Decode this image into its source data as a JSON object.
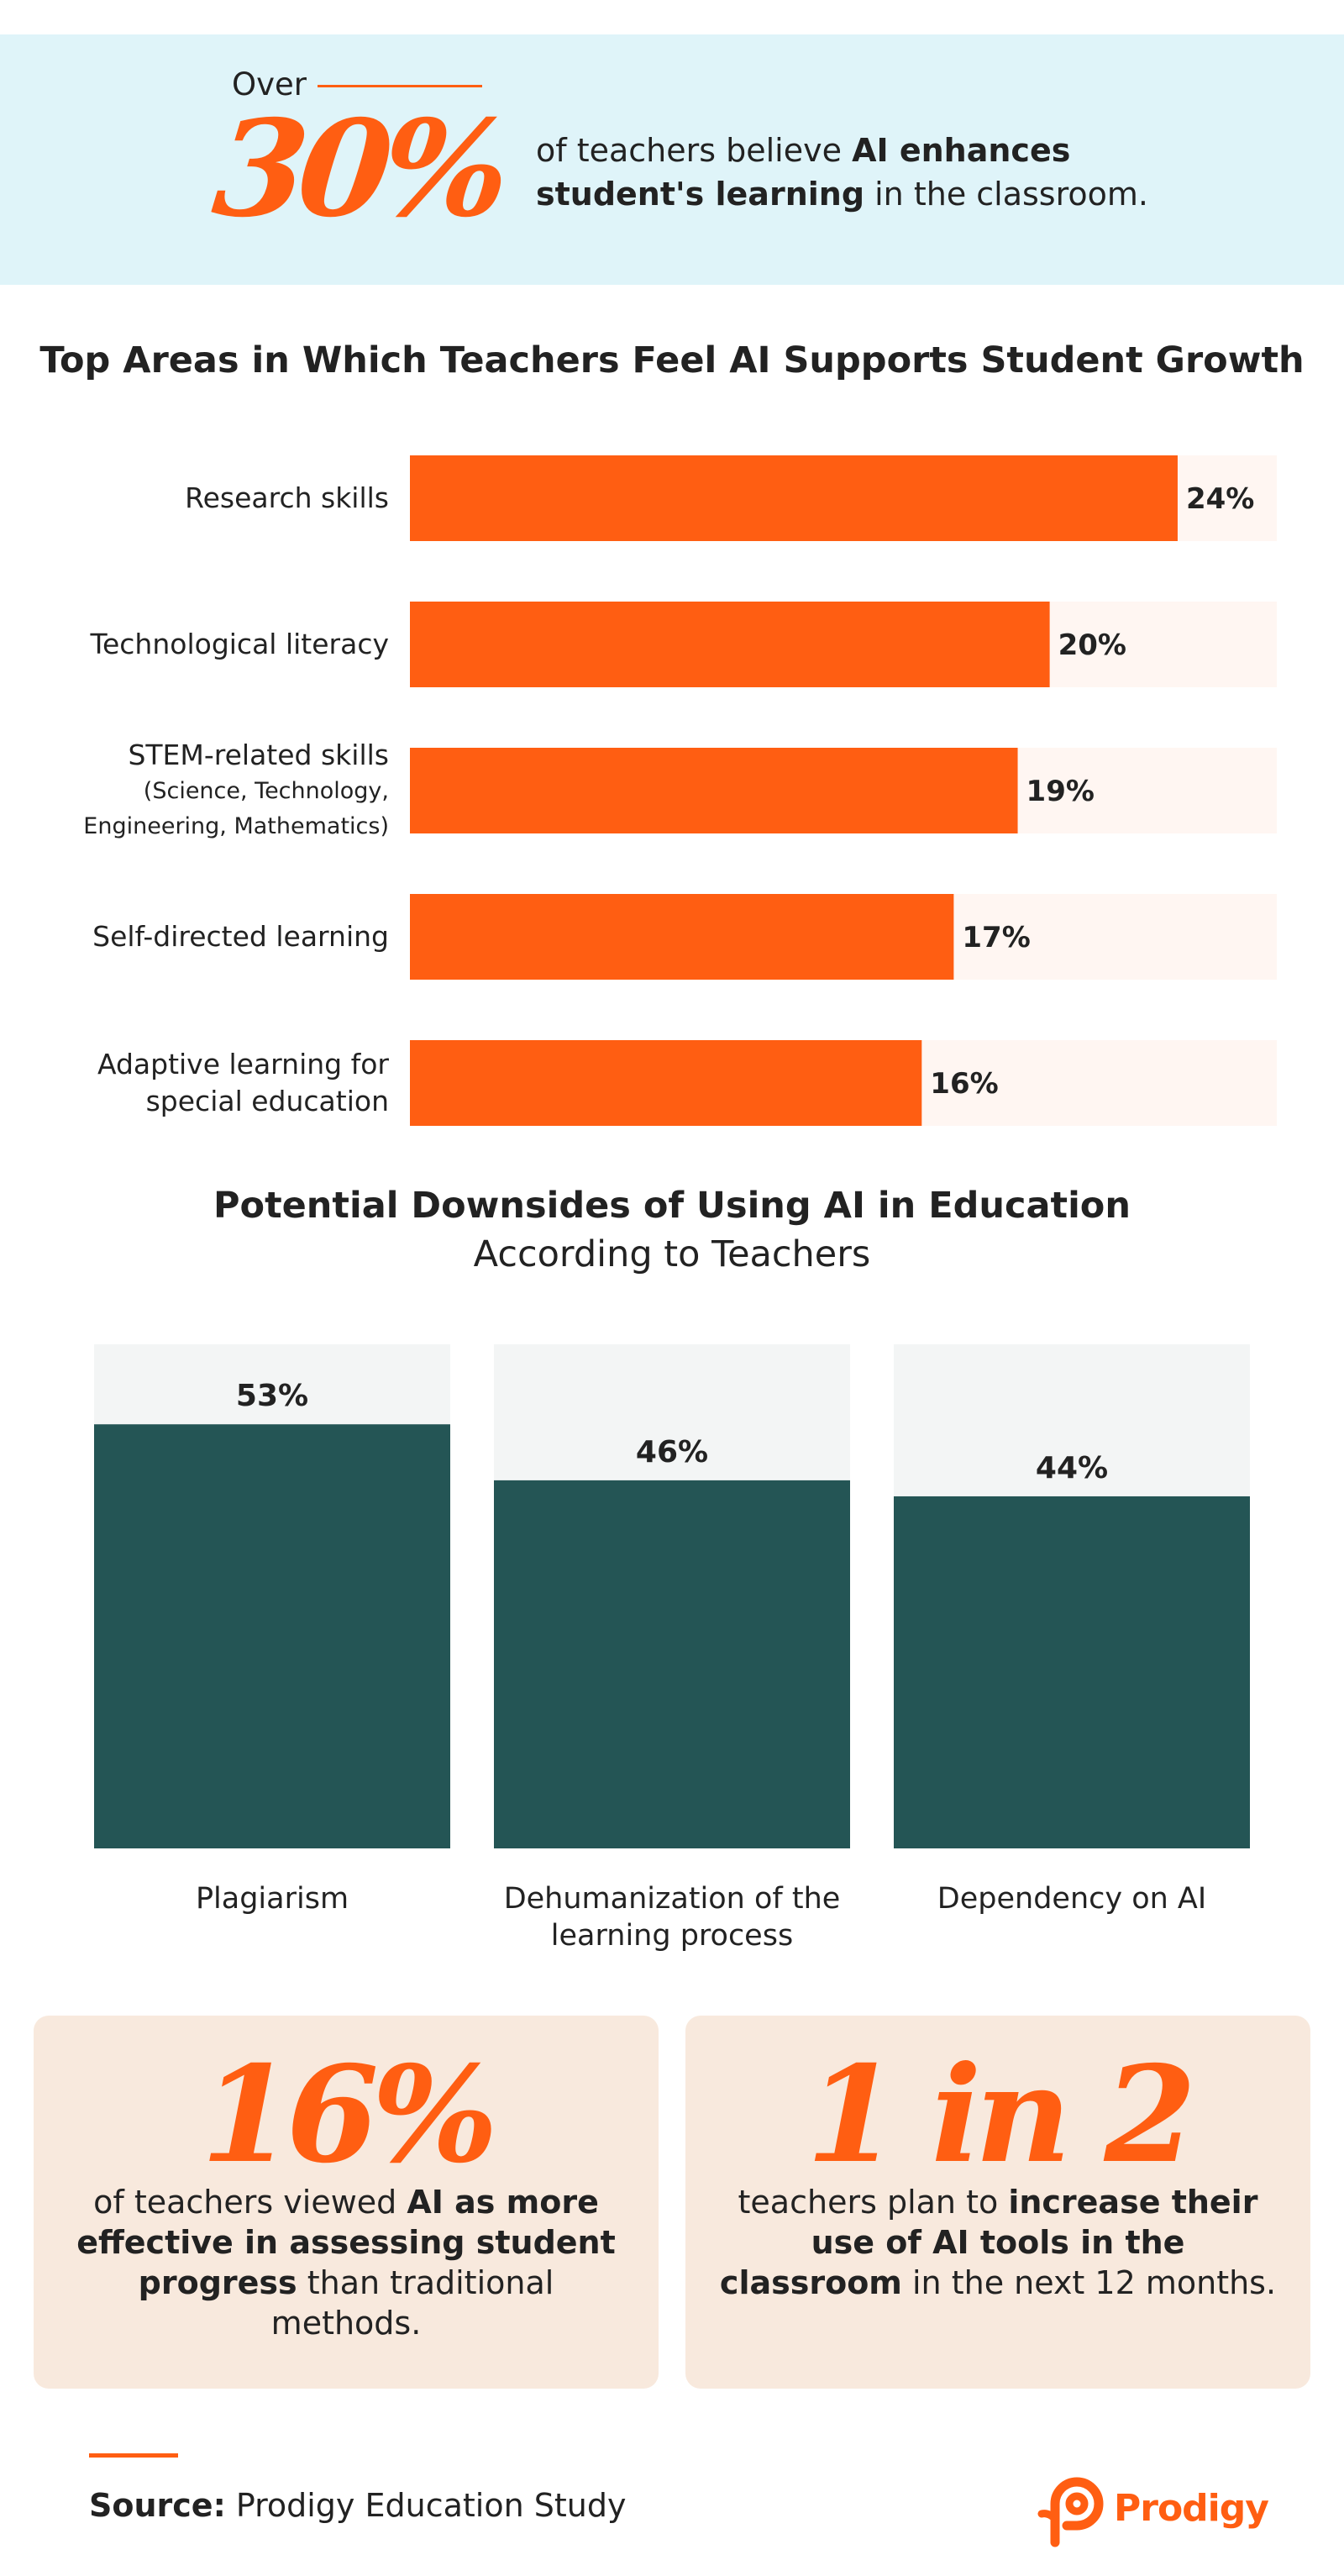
{
  "hero": {
    "over": "Over",
    "big_stat": "30%",
    "text_pre": "of teachers believe ",
    "text_bold": "AI enhances student's learning",
    "text_post": " in the classroom."
  },
  "colors": {
    "orange": "#ff5e12",
    "orange_track": "#fff6f2",
    "teal": "#245555",
    "teal_track": "#f3f5f5",
    "hero_bg": "#dff4f9",
    "card_bg": "#f8e9dd"
  },
  "chart_data": [
    {
      "type": "bar",
      "orientation": "horizontal",
      "title": "Top Areas in Which Teachers Feel AI Supports Student Growth",
      "categories": [
        "Research skills",
        "Technological literacy",
        "STEM-related skills",
        "Self-directed learning",
        "Adaptive learning for special education"
      ],
      "category_label_lines": [
        [
          "Research skills"
        ],
        [
          "Technological literacy"
        ],
        [
          "STEM-related skills"
        ],
        [
          "Self-directed learning"
        ],
        [
          "Adaptive learning for",
          "special education"
        ]
      ],
      "category_sublabels": [
        "",
        "",
        "(Science, Technology, Engineering, Mathematics)",
        "",
        ""
      ],
      "category_sublabel_lines": [
        [],
        [],
        [
          "(Science, Technology,",
          "Engineering, Mathematics)"
        ],
        [],
        []
      ],
      "values": [
        24,
        20,
        19,
        17,
        16
      ],
      "value_labels": [
        "24%",
        "20%",
        "19%",
        "17%",
        "16%"
      ],
      "xlim": [
        0,
        27.1
      ]
    },
    {
      "type": "bar",
      "orientation": "vertical",
      "title": "Potential Downsides of Using AI in Education",
      "subtitle": "According to Teachers",
      "categories": [
        "Plagiarism",
        "Dehumanization of the learning process",
        "Dependency on AI"
      ],
      "category_label_lines": [
        [
          "Plagiarism"
        ],
        [
          "Dehumanization of the",
          "learning process"
        ],
        [
          "Dependency on AI"
        ]
      ],
      "values": [
        53,
        46,
        44
      ],
      "value_labels": [
        "53%",
        "46%",
        "44%"
      ],
      "ylim": [
        0,
        63
      ]
    }
  ],
  "cards": [
    {
      "big": "16%",
      "pre": "of teachers viewed ",
      "bold": "AI as more effective in assessing student progress",
      "post": " than traditional methods."
    },
    {
      "big": "1 in 2",
      "pre": "teachers plan to ",
      "bold": "increase their use of AI tools in the classroom",
      "post": " in the next 12 months."
    }
  ],
  "footer": {
    "source_label": "Source:",
    "source_text": " Prodigy Education Study",
    "logo_text": "Prodigy"
  }
}
